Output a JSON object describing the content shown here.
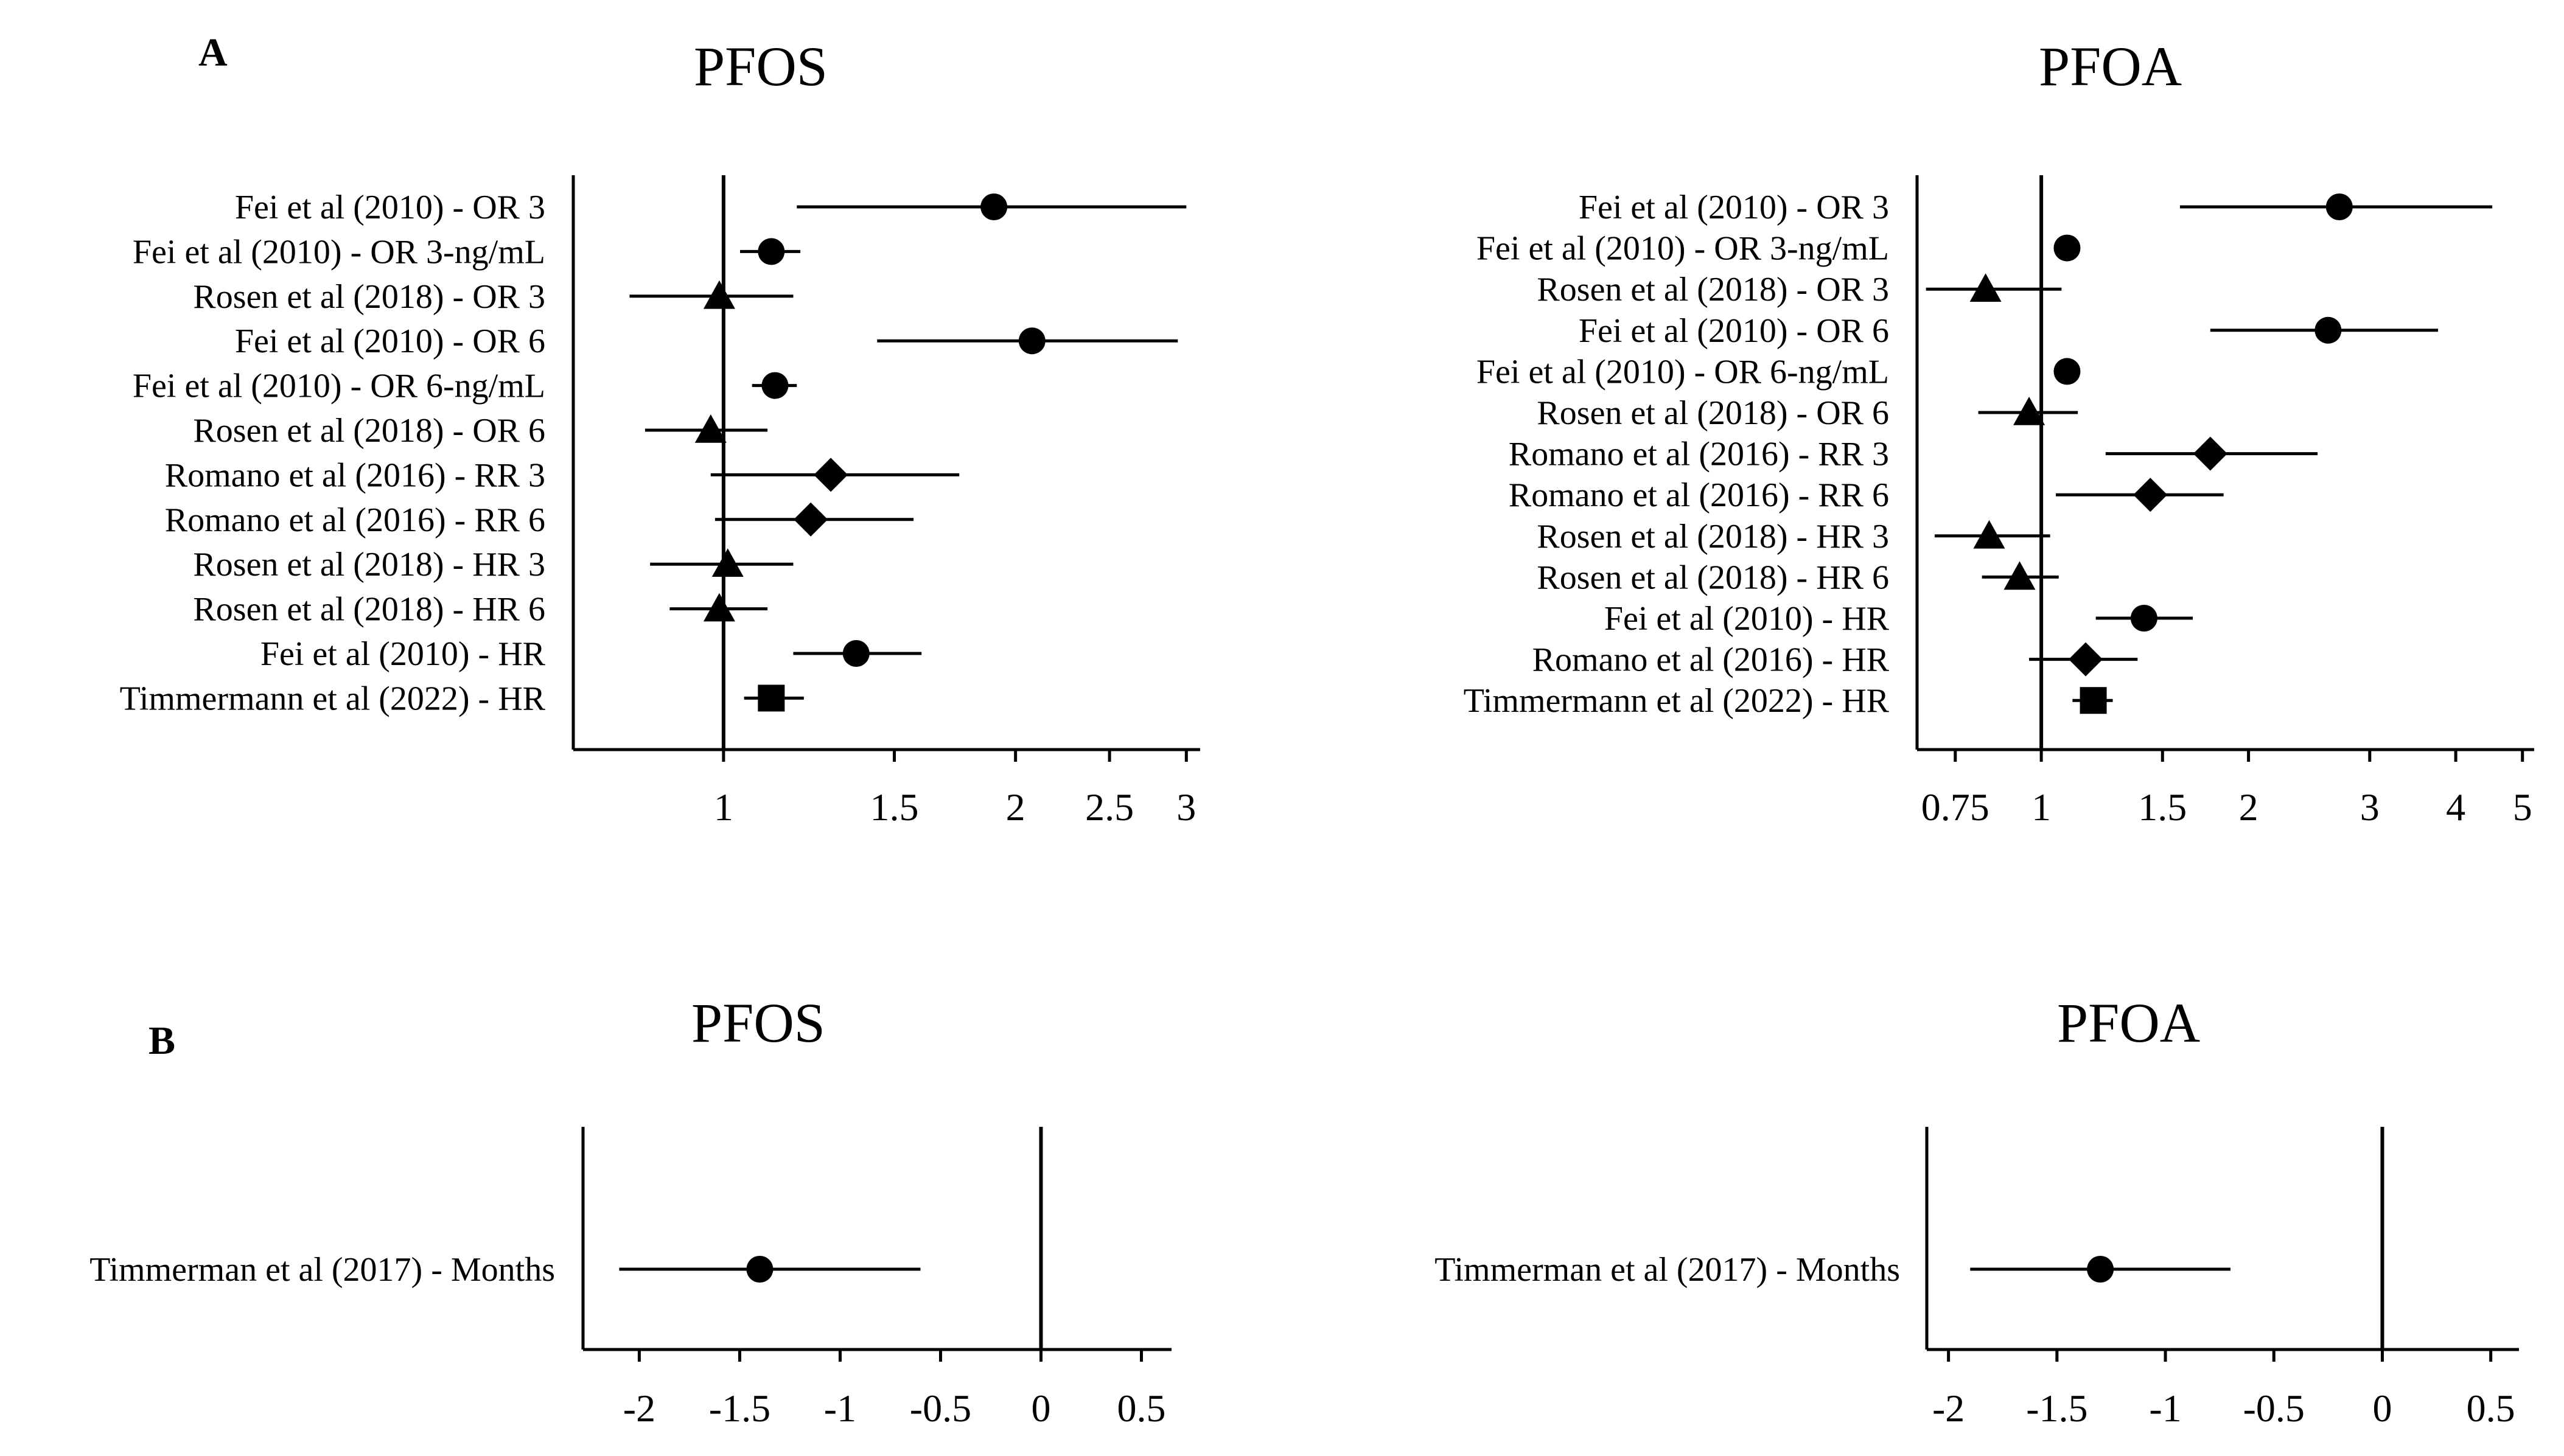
{
  "panels": {
    "a_label": "A",
    "b_label": "B"
  },
  "chart_data": [
    {
      "type": "forest",
      "title": "PFOS",
      "panel": "A",
      "scale": "log",
      "xlim": [
        0.7,
        3.1
      ],
      "reference": 1,
      "xticks": [
        1,
        1.5,
        2,
        2.5,
        3
      ],
      "xtick_labels": [
        "1",
        "1.5",
        "2",
        "2.5",
        "3"
      ],
      "rows": [
        {
          "label": "Fei et al (2010) - OR 3",
          "estimate": 1.9,
          "lower": 1.19,
          "upper": 3.0,
          "marker": "circle"
        },
        {
          "label": "Fei et al (2010) - OR 3-ng/mL",
          "estimate": 1.12,
          "lower": 1.04,
          "upper": 1.2,
          "marker": "circle"
        },
        {
          "label": "Rosen et al (2018) - OR 3",
          "estimate": 0.99,
          "lower": 0.8,
          "upper": 1.18,
          "marker": "triangle"
        },
        {
          "label": "Fei et al (2010) - OR 6",
          "estimate": 2.08,
          "lower": 1.44,
          "upper": 2.94,
          "marker": "circle"
        },
        {
          "label": "Fei et al (2010) - OR 6-ng/mL",
          "estimate": 1.13,
          "lower": 1.07,
          "upper": 1.19,
          "marker": "circle"
        },
        {
          "label": "Rosen et al (2018) - OR 6",
          "estimate": 0.97,
          "lower": 0.83,
          "upper": 1.11,
          "marker": "triangle"
        },
        {
          "label": "Romano et al (2016) - RR 3",
          "estimate": 1.29,
          "lower": 0.97,
          "upper": 1.75,
          "marker": "diamond"
        },
        {
          "label": "Romano et al (2016) - RR 6",
          "estimate": 1.23,
          "lower": 0.98,
          "upper": 1.57,
          "marker": "diamond"
        },
        {
          "label": "Rosen et al (2018) - HR 3",
          "estimate": 1.01,
          "lower": 0.84,
          "upper": 1.18,
          "marker": "triangle"
        },
        {
          "label": "Rosen et al (2018) - HR 6",
          "estimate": 0.99,
          "lower": 0.88,
          "upper": 1.11,
          "marker": "triangle"
        },
        {
          "label": "Fei et al (2010) - HR",
          "estimate": 1.37,
          "lower": 1.18,
          "upper": 1.6,
          "marker": "circle"
        },
        {
          "label": "Timmermann et al (2022) - HR",
          "estimate": 1.12,
          "lower": 1.05,
          "upper": 1.21,
          "marker": "square"
        }
      ]
    },
    {
      "type": "forest",
      "title": "PFOA",
      "panel": "A",
      "scale": "log",
      "xlim": [
        0.66,
        5.2
      ],
      "reference": 1,
      "xticks": [
        0.75,
        1,
        1.5,
        2,
        3,
        4,
        5
      ],
      "xtick_labels": [
        "0.75",
        "1",
        "1.5",
        "2",
        "3",
        "4",
        "5"
      ],
      "rows": [
        {
          "label": "Fei et al (2010) - OR 3",
          "estimate": 2.71,
          "lower": 1.59,
          "upper": 4.52,
          "marker": "circle"
        },
        {
          "label": "Fei et al (2010) - OR 3-ng/mL",
          "estimate": 1.09,
          "lower": 1.06,
          "upper": 1.12,
          "marker": "circle"
        },
        {
          "label": "Rosen et al (2018) - OR 3",
          "estimate": 0.83,
          "lower": 0.68,
          "upper": 1.07,
          "marker": "triangle"
        },
        {
          "label": "Fei et al (2010) - OR 6",
          "estimate": 2.61,
          "lower": 1.76,
          "upper": 3.77,
          "marker": "circle"
        },
        {
          "label": "Fei et al (2010) - OR 6-ng/mL",
          "estimate": 1.09,
          "lower": 1.06,
          "upper": 1.12,
          "marker": "circle"
        },
        {
          "label": "Rosen et al (2018) - OR 6",
          "estimate": 0.96,
          "lower": 0.81,
          "upper": 1.13,
          "marker": "triangle"
        },
        {
          "label": "Romano et al (2016) - RR 3",
          "estimate": 1.76,
          "lower": 1.24,
          "upper": 2.52,
          "marker": "diamond"
        },
        {
          "label": "Romano et al (2016) - RR 6",
          "estimate": 1.44,
          "lower": 1.05,
          "upper": 1.84,
          "marker": "diamond"
        },
        {
          "label": "Rosen et al (2018) - HR 3",
          "estimate": 0.84,
          "lower": 0.7,
          "upper": 1.03,
          "marker": "triangle"
        },
        {
          "label": "Rosen et al (2018) - HR 6",
          "estimate": 0.93,
          "lower": 0.82,
          "upper": 1.06,
          "marker": "triangle"
        },
        {
          "label": "Fei et al (2010) - HR",
          "estimate": 1.41,
          "lower": 1.2,
          "upper": 1.66,
          "marker": "circle"
        },
        {
          "label": "Romano et al (2016) - HR",
          "estimate": 1.16,
          "lower": 0.96,
          "upper": 1.38,
          "marker": "diamond"
        },
        {
          "label": "Timmermann et al (2022) - HR",
          "estimate": 1.19,
          "lower": 1.11,
          "upper": 1.27,
          "marker": "square"
        }
      ]
    },
    {
      "type": "forest",
      "title": "PFOS",
      "panel": "B",
      "scale": "linear",
      "xlim": [
        -2.28,
        0.65
      ],
      "reference": 0,
      "xticks": [
        -2,
        -1.5,
        -1,
        -0.5,
        0,
        0.5
      ],
      "xtick_labels": [
        "-2",
        "-1.5",
        "-1",
        "-0.5",
        "0",
        "0.5"
      ],
      "rows": [
        {
          "label": "Timmerman et al (2017) - Months",
          "estimate": -1.4,
          "lower": -2.1,
          "upper": -0.6,
          "marker": "circle"
        }
      ]
    },
    {
      "type": "forest",
      "title": "PFOA",
      "panel": "B",
      "scale": "linear",
      "xlim": [
        -2.1,
        0.63
      ],
      "reference": 0,
      "xticks": [
        -2,
        -1.5,
        -1,
        -0.5,
        0,
        0.5
      ],
      "xtick_labels": [
        "-2",
        "-1.5",
        "-1",
        "-0.5",
        "0",
        "0.5"
      ],
      "rows": [
        {
          "label": "Timmerman et al (2017) - Months",
          "estimate": -1.3,
          "lower": -1.9,
          "upper": -0.7,
          "marker": "circle"
        }
      ]
    }
  ]
}
